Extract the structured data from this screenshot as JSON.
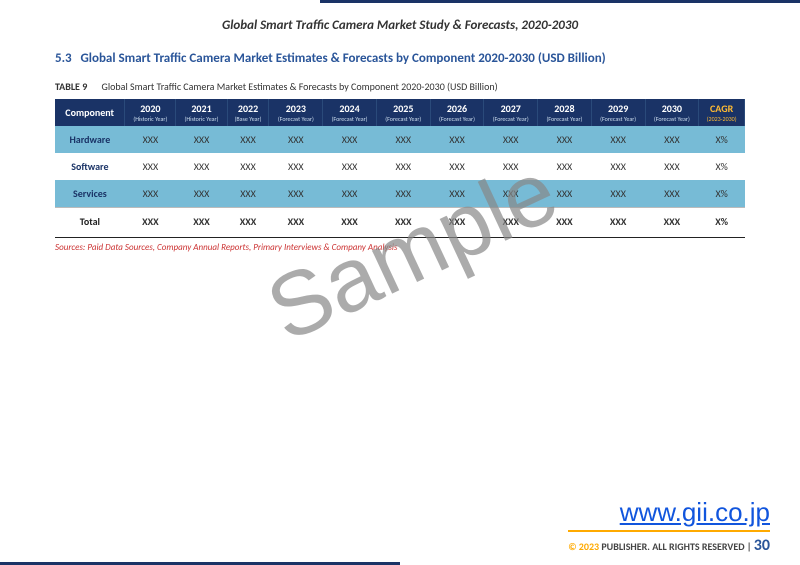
{
  "header": {
    "document_title": "Global Smart Traffic Camera Market Study & Forecasts, 2020-2030"
  },
  "section": {
    "number": "5.3",
    "heading": "Global Smart Traffic Camera Market Estimates & Forecasts by Component 2020-2030 (USD Billion)"
  },
  "table": {
    "caption_label": "TABLE 9",
    "caption_text": "Global Smart Traffic Camera Market Estimates & Forecasts by Component 2020-2030 (USD Billion)",
    "header_row_label": "Component",
    "columns": [
      {
        "year": "2020",
        "sub": "(Historic Year)"
      },
      {
        "year": "2021",
        "sub": "(Historic Year)"
      },
      {
        "year": "2022",
        "sub": "(Base Year)"
      },
      {
        "year": "2023",
        "sub": "(Forecast Year)"
      },
      {
        "year": "2024",
        "sub": "(Forecast Year)"
      },
      {
        "year": "2025",
        "sub": "(Forecast Year)"
      },
      {
        "year": "2026",
        "sub": "(Forecast Year)"
      },
      {
        "year": "2027",
        "sub": "(Forecast Year)"
      },
      {
        "year": "2028",
        "sub": "(Forecast Year)"
      },
      {
        "year": "2029",
        "sub": "(Forecast Year)"
      },
      {
        "year": "2030",
        "sub": "(Forecast Year)"
      }
    ],
    "cagr_col": {
      "label": "CAGR",
      "sub": "(2023-2030)"
    },
    "rows": [
      {
        "label": "Hardware",
        "stripe": "blue",
        "cells": [
          "XXX",
          "XXX",
          "XXX",
          "XXX",
          "XXX",
          "XXX",
          "XXX",
          "XXX",
          "XXX",
          "XXX",
          "XXX"
        ],
        "cagr": "X%"
      },
      {
        "label": "Software",
        "stripe": "white",
        "cells": [
          "XXX",
          "XXX",
          "XXX",
          "XXX",
          "XXX",
          "XXX",
          "XXX",
          "XXX",
          "XXX",
          "XXX",
          "XXX"
        ],
        "cagr": "X%"
      },
      {
        "label": "Services",
        "stripe": "blue",
        "cells": [
          "XXX",
          "XXX",
          "XXX",
          "XXX",
          "XXX",
          "XXX",
          "XXX",
          "XXX",
          "XXX",
          "XXX",
          "XXX"
        ],
        "cagr": "X%"
      }
    ],
    "total_row": {
      "label": "Total",
      "cells": [
        "XXX",
        "XXX",
        "XXX",
        "XXX",
        "XXX",
        "XXX",
        "XXX",
        "XXX",
        "XXX",
        "XXX",
        "XXX"
      ],
      "cagr": "X%"
    },
    "sources": "Sources: Paid Data Sources, Company Annual Reports, Primary Interviews & Company Analysis"
  },
  "watermark": "Sample",
  "footer": {
    "website": "www.gii.co.jp",
    "copyright_symbol": "© 2023",
    "publisher_text": "PUBLISHER. ALL RIGHTS RESERVED |",
    "page_number": "30"
  },
  "colors": {
    "header_bg": "#1a3366",
    "section_heading": "#2a5599",
    "stripe_blue": "#77bbd6",
    "accent_orange": "#ffaa00",
    "source_red": "#cc3333",
    "link_blue": "#1155dd"
  }
}
